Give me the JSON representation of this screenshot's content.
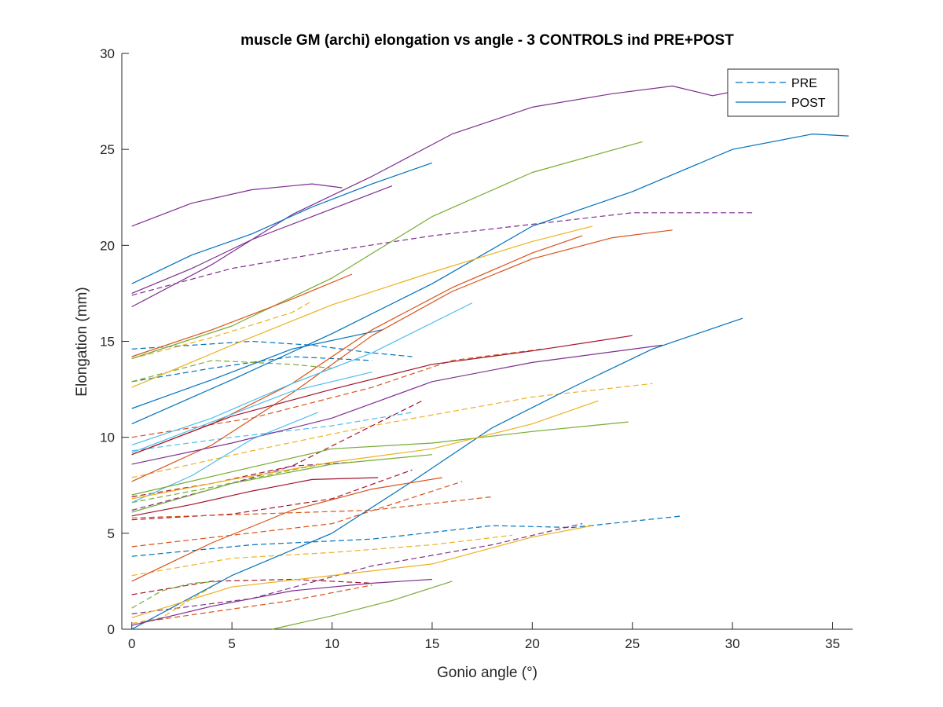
{
  "chart_data": {
    "type": "line",
    "title": "muscle GM (archi) elongation vs angle - 3 CONTROLS ind PRE+POST",
    "xlabel": "Gonio angle (°)",
    "ylabel": "Elongation (mm)",
    "xlim": [
      -0.5,
      36.0
    ],
    "ylim": [
      0,
      30
    ],
    "xticks": [
      0,
      5,
      10,
      15,
      20,
      25,
      30,
      35
    ],
    "yticks": [
      0,
      5,
      10,
      15,
      20,
      25,
      30
    ],
    "xtick_labels": [
      "0",
      "5",
      "10",
      "15",
      "20",
      "25",
      "30",
      "35"
    ],
    "ytick_labels": [
      "0",
      "5",
      "10",
      "15",
      "20",
      "25",
      "30"
    ],
    "grid": false,
    "legend_position": "top-right",
    "legend": [
      {
        "label": "PRE",
        "style": "dashed",
        "color": "#0072BD"
      },
      {
        "label": "POST",
        "style": "solid",
        "color": "#0072BD"
      }
    ],
    "series": [
      {
        "style": "dashed",
        "color": "#7E2F8E",
        "x": [
          0,
          5,
          10,
          15,
          20,
          25,
          31
        ],
        "y": [
          17.4,
          18.8,
          19.7,
          20.5,
          21.1,
          21.7,
          21.7
        ]
      },
      {
        "style": "dashed",
        "color": "#0072BD",
        "x": [
          0,
          3,
          6,
          9,
          12,
          14
        ],
        "y": [
          14.6,
          14.8,
          15.0,
          14.8,
          14.4,
          14.2
        ]
      },
      {
        "style": "dashed",
        "color": "#0072BD",
        "x": [
          0,
          4,
          8,
          12
        ],
        "y": [
          12.9,
          13.6,
          14.2,
          14.0
        ]
      },
      {
        "style": "dashed",
        "color": "#77AC30",
        "x": [
          0,
          4,
          8,
          10
        ],
        "y": [
          12.9,
          14.0,
          13.8,
          13.6
        ]
      },
      {
        "style": "dashed",
        "color": "#EDB120",
        "x": [
          0,
          4,
          8,
          9
        ],
        "y": [
          14.1,
          15.2,
          16.5,
          17.1
        ]
      },
      {
        "style": "dashed",
        "color": "#D95319",
        "x": [
          0,
          6,
          12,
          16,
          20.5
        ],
        "y": [
          10.0,
          11.0,
          12.6,
          14.0,
          14.6
        ]
      },
      {
        "style": "dashed",
        "color": "#4DBEEE",
        "x": [
          0,
          5,
          10,
          14
        ],
        "y": [
          9.3,
          10.0,
          10.6,
          11.3
        ]
      },
      {
        "style": "dashed",
        "color": "#EDB120",
        "x": [
          0,
          6,
          12,
          20,
          26
        ],
        "y": [
          7.9,
          9.3,
          10.6,
          12.1,
          12.8
        ]
      },
      {
        "style": "dashed",
        "color": "#A2142F",
        "x": [
          0,
          4,
          8,
          12,
          14.5
        ],
        "y": [
          6.9,
          7.6,
          8.5,
          10.6,
          11.9
        ]
      },
      {
        "style": "dashed",
        "color": "#77AC30",
        "x": [
          0,
          4,
          8,
          10
        ],
        "y": [
          6.6,
          7.4,
          8.3,
          8.7
        ]
      },
      {
        "style": "dashed",
        "color": "#7E2F8E",
        "x": [
          0,
          4,
          8,
          11
        ],
        "y": [
          6.2,
          7.3,
          8.5,
          8.7
        ]
      },
      {
        "style": "dashed",
        "color": "#A2142F",
        "x": [
          0,
          5,
          10,
          14
        ],
        "y": [
          5.7,
          6.0,
          6.8,
          8.3
        ]
      },
      {
        "style": "dashed",
        "color": "#D95319",
        "x": [
          0,
          5,
          10,
          16.5
        ],
        "y": [
          4.3,
          4.9,
          5.5,
          7.7
        ]
      },
      {
        "style": "dashed",
        "color": "#D95319",
        "x": [
          0,
          6,
          12,
          18
        ],
        "y": [
          5.8,
          6.0,
          6.2,
          6.9
        ]
      },
      {
        "style": "dashed",
        "color": "#0072BD",
        "x": [
          0,
          6,
          12,
          18,
          22,
          27.5
        ],
        "y": [
          3.8,
          4.4,
          4.7,
          5.4,
          5.3,
          5.9
        ]
      },
      {
        "style": "dashed",
        "color": "#EDB120",
        "x": [
          0,
          5,
          10,
          15,
          19
        ],
        "y": [
          2.8,
          3.7,
          4.0,
          4.4,
          4.9
        ]
      },
      {
        "style": "dashed",
        "color": "#7E2F8E",
        "x": [
          0,
          6,
          12,
          18,
          22.5
        ],
        "y": [
          0.8,
          1.6,
          3.3,
          4.4,
          5.5
        ]
      },
      {
        "style": "dashed",
        "color": "#A2142F",
        "x": [
          0,
          4,
          8,
          12
        ],
        "y": [
          1.8,
          2.5,
          2.6,
          2.4
        ]
      },
      {
        "style": "dashed",
        "color": "#77AC30",
        "x": [
          0,
          1.5,
          3,
          4.5
        ],
        "y": [
          1.1,
          2.0,
          2.4,
          2.5
        ]
      },
      {
        "style": "dashed",
        "color": "#D95319",
        "x": [
          0,
          4,
          8,
          12
        ],
        "y": [
          0.3,
          0.9,
          1.5,
          2.3
        ]
      },
      {
        "style": "dashed",
        "color": "#EDB120",
        "x": [
          0,
          1.5,
          3,
          4
        ],
        "y": [
          0.3,
          0.6,
          1.6,
          2.2
        ]
      },
      {
        "style": "solid",
        "color": "#7E2F8E",
        "x": [
          0,
          4,
          8,
          12,
          16,
          20,
          24,
          27,
          29,
          30
        ],
        "y": [
          16.8,
          19.0,
          21.6,
          23.6,
          25.8,
          27.2,
          27.9,
          28.3,
          27.8,
          28.0
        ]
      },
      {
        "style": "solid",
        "color": "#7E2F8E",
        "x": [
          0,
          3,
          6,
          9,
          10.5
        ],
        "y": [
          21.0,
          22.2,
          22.9,
          23.2,
          23.0
        ]
      },
      {
        "style": "solid",
        "color": "#0072BD",
        "x": [
          0,
          3,
          6,
          9,
          12,
          15
        ],
        "y": [
          18.0,
          19.5,
          20.6,
          22.0,
          23.2,
          24.3
        ]
      },
      {
        "style": "solid",
        "color": "#7E2F8E",
        "x": [
          0,
          3,
          6,
          9,
          13
        ],
        "y": [
          17.5,
          18.8,
          20.3,
          21.5,
          23.1
        ]
      },
      {
        "style": "solid",
        "color": "#77AC30",
        "x": [
          0,
          5,
          10,
          15,
          20,
          25.5
        ],
        "y": [
          14.1,
          15.8,
          18.3,
          21.5,
          23.8,
          25.4
        ]
      },
      {
        "style": "solid",
        "color": "#0072BD",
        "x": [
          0,
          5,
          10,
          15,
          20,
          25,
          30,
          34,
          35.8
        ],
        "y": [
          10.7,
          13.0,
          15.4,
          18.0,
          21.0,
          22.8,
          25.0,
          25.8,
          25.7
        ]
      },
      {
        "style": "solid",
        "color": "#D95319",
        "x": [
          0,
          4,
          8,
          11
        ],
        "y": [
          14.2,
          15.6,
          17.2,
          18.5
        ]
      },
      {
        "style": "solid",
        "color": "#EDB120",
        "x": [
          0,
          5,
          10,
          15,
          20,
          23
        ],
        "y": [
          12.6,
          14.8,
          16.9,
          18.6,
          20.2,
          21.0
        ]
      },
      {
        "style": "solid",
        "color": "#0072BD",
        "x": [
          0,
          4,
          8,
          12.5
        ],
        "y": [
          11.5,
          13.0,
          14.6,
          15.6
        ]
      },
      {
        "style": "solid",
        "color": "#D95319",
        "x": [
          0,
          4,
          8,
          12,
          16,
          20,
          24,
          27
        ],
        "y": [
          7.7,
          9.6,
          12.3,
          15.3,
          17.6,
          19.3,
          20.4,
          20.8
        ]
      },
      {
        "style": "solid",
        "color": "#D95319",
        "x": [
          0,
          4,
          8,
          12,
          16,
          20,
          22.5
        ],
        "y": [
          9.1,
          10.7,
          12.8,
          15.6,
          17.8,
          19.6,
          20.5
        ]
      },
      {
        "style": "solid",
        "color": "#4DBEEE",
        "x": [
          0,
          4,
          8,
          12,
          17
        ],
        "y": [
          9.6,
          11.0,
          12.8,
          14.4,
          17.0
        ]
      },
      {
        "style": "solid",
        "color": "#4DBEEE",
        "x": [
          0,
          4,
          8,
          12
        ],
        "y": [
          9.2,
          10.8,
          12.4,
          13.4
        ]
      },
      {
        "style": "solid",
        "color": "#A2142F",
        "x": [
          0,
          5,
          10,
          15,
          20,
          25
        ],
        "y": [
          9.1,
          11.1,
          12.5,
          13.8,
          14.5,
          15.3
        ]
      },
      {
        "style": "solid",
        "color": "#7E2F8E",
        "x": [
          0,
          5,
          10,
          15,
          20,
          26.5
        ],
        "y": [
          8.6,
          9.7,
          11.0,
          12.9,
          13.9,
          14.8
        ]
      },
      {
        "style": "solid",
        "color": "#4DBEEE",
        "x": [
          0,
          3,
          6,
          9.3
        ],
        "y": [
          6.6,
          8.0,
          9.9,
          11.3
        ]
      },
      {
        "style": "solid",
        "color": "#0072BD",
        "x": [
          0,
          5,
          10,
          14,
          18,
          22,
          26,
          30.5
        ],
        "y": [
          0.0,
          2.8,
          5.0,
          7.7,
          10.5,
          12.6,
          14.6,
          16.2
        ]
      },
      {
        "style": "solid",
        "color": "#77AC30",
        "x": [
          0,
          5,
          10,
          15,
          20,
          24.8
        ],
        "y": [
          7.0,
          8.2,
          9.4,
          9.7,
          10.3,
          10.8
        ]
      },
      {
        "style": "solid",
        "color": "#EDB120",
        "x": [
          0,
          5,
          10,
          15,
          20,
          23.3
        ],
        "y": [
          6.8,
          7.8,
          8.7,
          9.4,
          10.7,
          11.9
        ]
      },
      {
        "style": "solid",
        "color": "#77AC30",
        "x": [
          0,
          5,
          10,
          15
        ],
        "y": [
          6.1,
          7.6,
          8.6,
          9.1
        ]
      },
      {
        "style": "solid",
        "color": "#A2142F",
        "x": [
          0,
          3,
          6,
          9,
          12.3
        ],
        "y": [
          5.9,
          6.5,
          7.2,
          7.8,
          7.9
        ]
      },
      {
        "style": "solid",
        "color": "#D95319",
        "x": [
          0,
          4,
          8,
          12,
          15.5
        ],
        "y": [
          2.5,
          4.5,
          6.2,
          7.3,
          7.9
        ]
      },
      {
        "style": "solid",
        "color": "#EDB120",
        "x": [
          0,
          5,
          10,
          15,
          20,
          23
        ],
        "y": [
          0.6,
          2.2,
          2.8,
          3.4,
          4.8,
          5.4
        ]
      },
      {
        "style": "solid",
        "color": "#7E2F8E",
        "x": [
          0,
          4,
          8,
          12,
          15
        ],
        "y": [
          0.2,
          1.2,
          2.0,
          2.4,
          2.6
        ]
      },
      {
        "style": "solid",
        "color": "#77AC30",
        "x": [
          7,
          10,
          13,
          16
        ],
        "y": [
          0.0,
          0.7,
          1.5,
          2.5
        ]
      }
    ]
  }
}
